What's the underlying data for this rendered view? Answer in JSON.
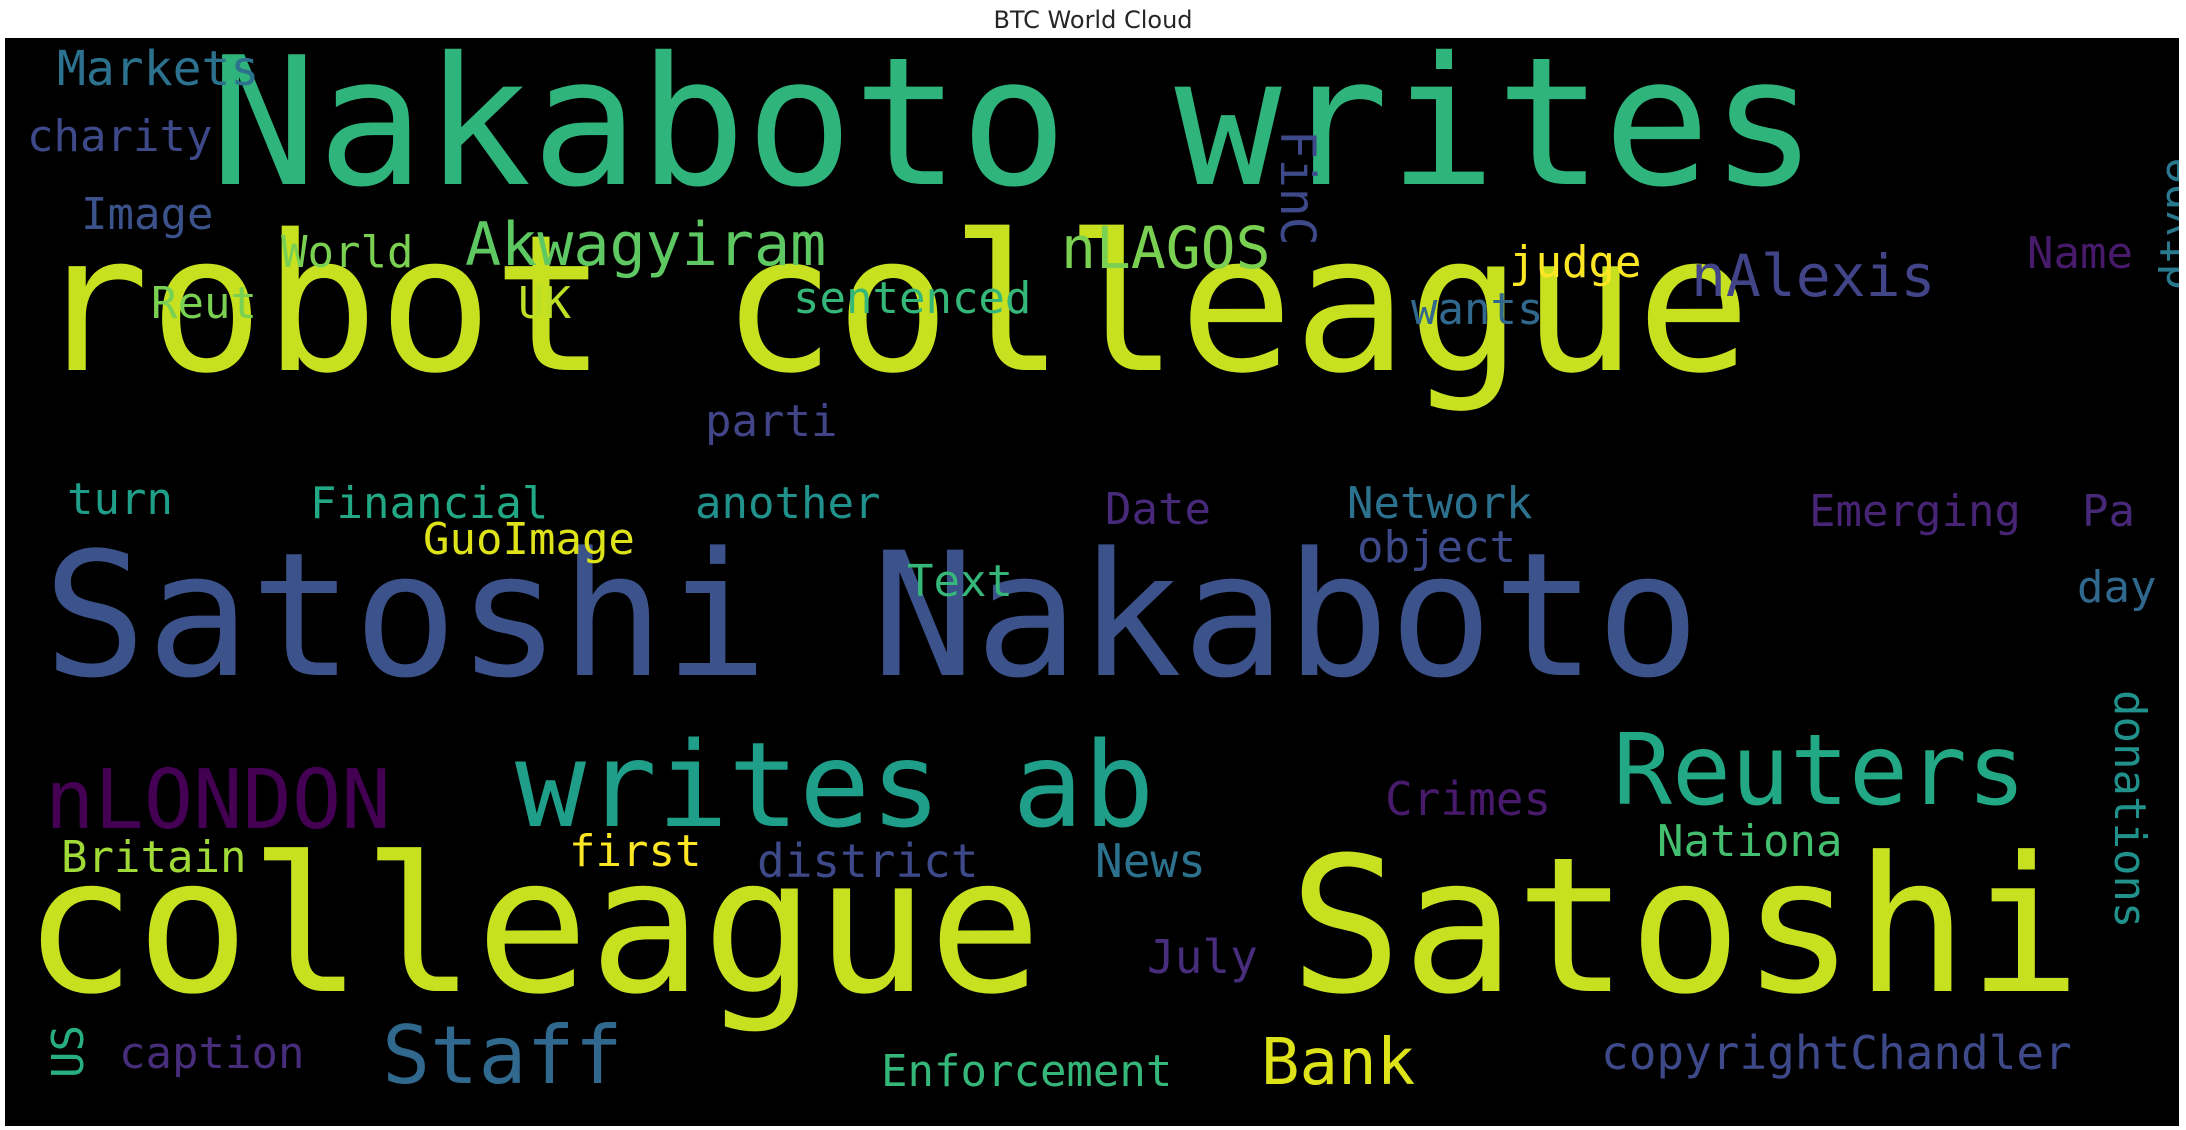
{
  "title": "BTC World Cloud",
  "words": [
    {
      "text": "Nakaboto writes",
      "color": "#2fb47c"
    },
    {
      "text": "robot colleague",
      "color": "#c7e020"
    },
    {
      "text": "Satoshi Nakaboto",
      "color": "#3b528b"
    },
    {
      "text": "colleague",
      "color": "#c7e020"
    },
    {
      "text": "Satoshi",
      "color": "#c7e020"
    },
    {
      "text": "writes ab",
      "color": "#1f9e89"
    },
    {
      "text": "Reuters",
      "color": "#22a884"
    },
    {
      "text": "nLONDON",
      "color": "#440154"
    },
    {
      "text": "Staff",
      "color": "#31688e"
    },
    {
      "text": "Akwagyiram",
      "color": "#5ec962"
    },
    {
      "text": "nLAGOS",
      "color": "#7ad151"
    },
    {
      "text": "nAlexis",
      "color": "#414487"
    },
    {
      "text": "Markets",
      "color": "#2c728e"
    },
    {
      "text": "charity",
      "color": "#3e4989"
    },
    {
      "text": "Image",
      "color": "#3b528b"
    },
    {
      "text": "World",
      "color": "#7ad151"
    },
    {
      "text": "FinC",
      "color": "#3e4989"
    },
    {
      "text": "judge",
      "color": "#fde725"
    },
    {
      "text": "Name",
      "color": "#481a6c"
    },
    {
      "text": "Reut",
      "color": "#7ad151"
    },
    {
      "text": "UK",
      "color": "#bddf26"
    },
    {
      "text": "sentenced",
      "color": "#35b779"
    },
    {
      "text": "wants",
      "color": "#31688e"
    },
    {
      "text": "dtype",
      "color": "#2a788e"
    },
    {
      "text": "parti",
      "color": "#414487"
    },
    {
      "text": "turn",
      "color": "#1f9e89"
    },
    {
      "text": "Financial",
      "color": "#22a884"
    },
    {
      "text": "another",
      "color": "#21918c"
    },
    {
      "text": "Date",
      "color": "#482878"
    },
    {
      "text": "Network",
      "color": "#2c728e"
    },
    {
      "text": "Emerging",
      "color": "#482475"
    },
    {
      "text": "Pa",
      "color": "#482878"
    },
    {
      "text": "GuoImage",
      "color": "#dde318"
    },
    {
      "text": "object",
      "color": "#3e4989"
    },
    {
      "text": "Text",
      "color": "#35b779"
    },
    {
      "text": "day",
      "color": "#31688e"
    },
    {
      "text": "Crimes",
      "color": "#481a6c"
    },
    {
      "text": "donations",
      "color": "#21918c"
    },
    {
      "text": "Britain",
      "color": "#a0da39"
    },
    {
      "text": "first",
      "color": "#fde725"
    },
    {
      "text": "district",
      "color": "#3e4989"
    },
    {
      "text": "News",
      "color": "#2c728e"
    },
    {
      "text": "Nationa",
      "color": "#44bf70"
    },
    {
      "text": "July",
      "color": "#472d7b"
    },
    {
      "text": "US",
      "color": "#28ae80"
    },
    {
      "text": "caption",
      "color": "#472d7b"
    },
    {
      "text": "Bank",
      "color": "#dde318"
    },
    {
      "text": "copyrightChandler",
      "color": "#3e4989"
    },
    {
      "text": "Enforcement",
      "color": "#35b779"
    }
  ]
}
